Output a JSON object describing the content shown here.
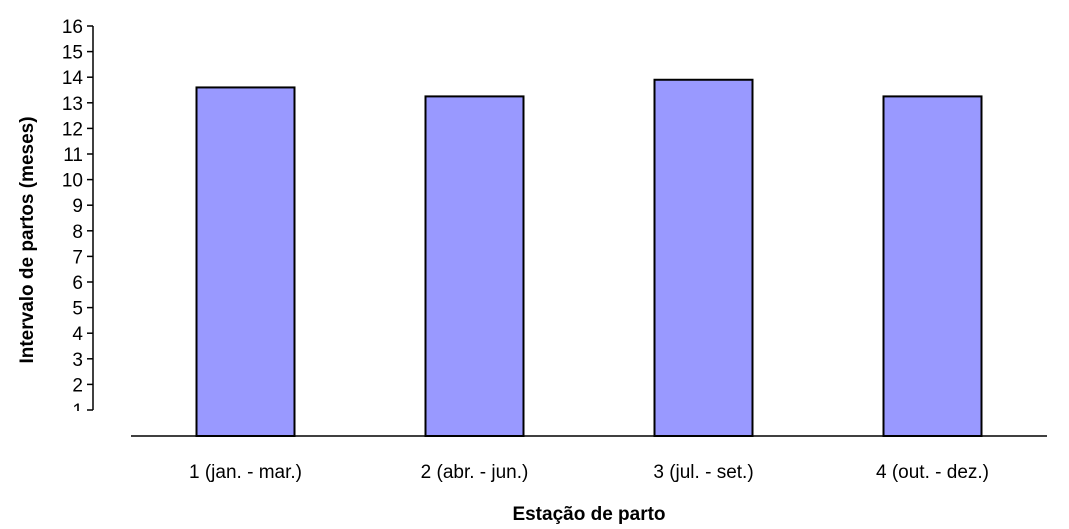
{
  "chart_data": {
    "type": "bar",
    "categories": [
      "1 (jan. - mar.)",
      "2 (abr. - jun.)",
      "3 (jul. - set.)",
      "4 (out. - dez.)"
    ],
    "values": [
      13.6,
      13.25,
      13.9,
      13.25
    ],
    "title": "",
    "xlabel": "Estação de parto",
    "ylabel": "Intervalo de partos (meses)",
    "yticks": [
      "1",
      "2",
      "3",
      "4",
      "5",
      "6",
      "7",
      "8",
      "9",
      "10",
      "11",
      "12",
      "13",
      "14",
      "15",
      "16"
    ],
    "ylim": [
      1,
      16
    ],
    "grid": false,
    "legend": "none",
    "colors": {
      "bar_fill": "#9999FF",
      "bar_stroke": "#000000",
      "axis": "#000000"
    }
  }
}
